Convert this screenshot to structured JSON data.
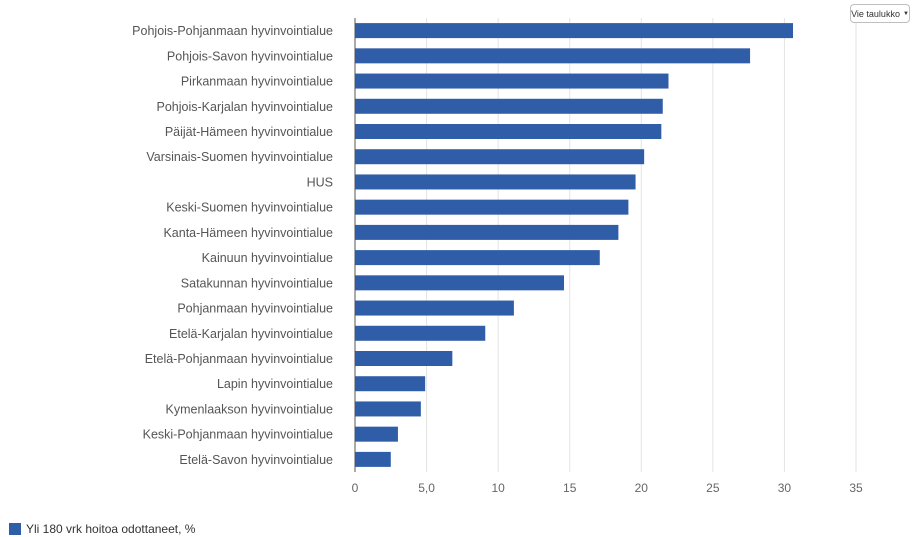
{
  "toolbar": {
    "export_label": "Vie taulukko",
    "export_icon": "caret-down-icon"
  },
  "colors": {
    "bar": "#2f5da8",
    "grid": "#e3e3e3",
    "axis": "#555555"
  },
  "chart_data": {
    "type": "bar",
    "orientation": "horizontal",
    "categories": [
      "Pohjois-Pohjanmaan hyvinvointialue",
      "Pohjois-Savon hyvinvointialue",
      "Pirkanmaan hyvinvointialue",
      "Pohjois-Karjalan hyvinvointialue",
      "Päijät-Hämeen hyvinvointialue",
      "Varsinais-Suomen hyvinvointialue",
      "HUS",
      "Keski-Suomen hyvinvointialue",
      "Kanta-Hämeen hyvinvointialue",
      "Kainuun hyvinvointialue",
      "Satakunnan hyvinvointialue",
      "Pohjanmaan hyvinvointialue",
      "Etelä-Karjalan hyvinvointialue",
      "Etelä-Pohjanmaan hyvinvointialue",
      "Lapin hyvinvointialue",
      "Kymenlaakson hyvinvointialue",
      "Keski-Pohjanmaan hyvinvointialue",
      "Etelä-Savon hyvinvointialue"
    ],
    "series": [
      {
        "name": "Yli 180 vrk hoitoa odottaneet, %",
        "values": [
          30.6,
          27.6,
          21.9,
          21.5,
          21.4,
          20.2,
          19.6,
          19.1,
          18.4,
          17.1,
          14.6,
          11.1,
          9.1,
          6.8,
          4.9,
          4.6,
          3.0,
          2.5
        ]
      }
    ],
    "x_ticks": [
      {
        "value": 0,
        "label": "0"
      },
      {
        "value": 5,
        "label": "5,0"
      },
      {
        "value": 10,
        "label": "10"
      },
      {
        "value": 15,
        "label": "15"
      },
      {
        "value": 20,
        "label": "20"
      },
      {
        "value": 25,
        "label": "25"
      },
      {
        "value": 30,
        "label": "30"
      },
      {
        "value": 35,
        "label": "35"
      }
    ],
    "xlim": [
      0,
      35
    ],
    "grid": true,
    "legend_position": "bottom-left"
  }
}
